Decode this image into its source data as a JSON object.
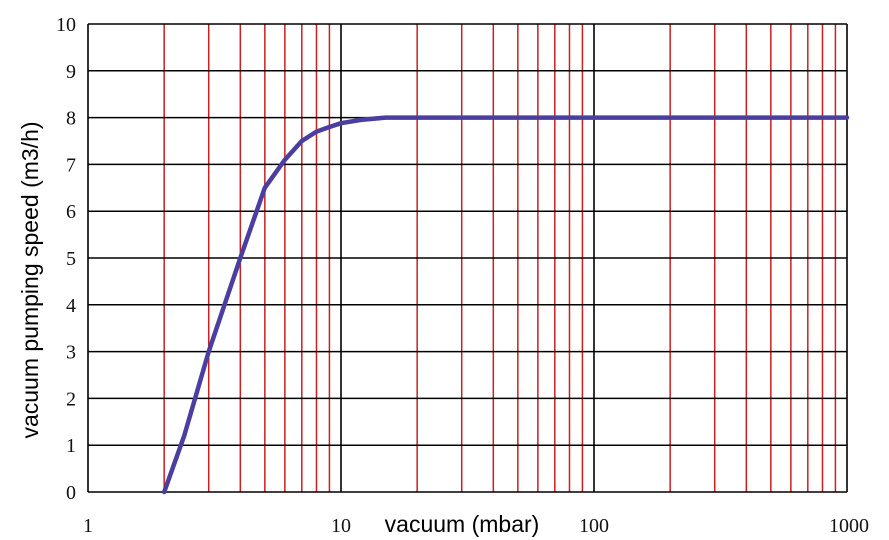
{
  "chart_data": {
    "type": "line",
    "title": "",
    "xlabel": "vacuum (mbar)",
    "ylabel": "vacuum pumping speed (m3/h)",
    "x_scale": "log",
    "xlim": [
      1,
      1000
    ],
    "ylim": [
      0,
      10
    ],
    "x_ticks": [
      1,
      10,
      100,
      1000
    ],
    "x_tick_labels": [
      "1",
      "10",
      "100",
      "1000"
    ],
    "y_ticks": [
      0,
      1,
      2,
      3,
      4,
      5,
      6,
      7,
      8,
      9,
      10
    ],
    "y_tick_labels": [
      "0",
      "1",
      "2",
      "3",
      "4",
      "5",
      "6",
      "7",
      "8",
      "9",
      "10"
    ],
    "grid": true,
    "grid_colors": {
      "vertical_minor": "#cc1f1f",
      "vertical_major": "#000000",
      "horizontal": "#000000"
    },
    "series": [
      {
        "color": "#4a3fa0",
        "x": [
          2,
          2.4,
          3,
          4,
          5,
          6,
          7,
          8,
          9,
          10,
          12,
          15,
          20,
          50,
          100,
          1000
        ],
        "y": [
          0,
          1.2,
          3,
          5,
          6.5,
          7.1,
          7.5,
          7.7,
          7.8,
          7.88,
          7.95,
          8,
          8,
          8,
          8,
          8
        ]
      }
    ]
  }
}
